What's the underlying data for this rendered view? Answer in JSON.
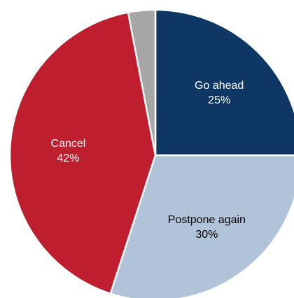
{
  "chart_data": {
    "type": "pie",
    "start_angle_deg": 0,
    "direction": "clockwise",
    "slices": [
      {
        "label": "Go ahead",
        "value": 25,
        "value_label": "25%",
        "color": "#0e3863",
        "text_color": "#ffffff"
      },
      {
        "label": "Postpone again",
        "value": 30,
        "value_label": "30%",
        "color": "#b0c3d9",
        "text_color": "#000000"
      },
      {
        "label": "Cancel",
        "value": 42,
        "value_label": "42%",
        "color": "#be1e2d",
        "text_color": "#ffffff"
      },
      {
        "label": "",
        "value": 3,
        "value_label": "",
        "color": "#a6a6a6",
        "text_color": "#000000"
      }
    ],
    "slice_border_color": "#ffffff"
  }
}
